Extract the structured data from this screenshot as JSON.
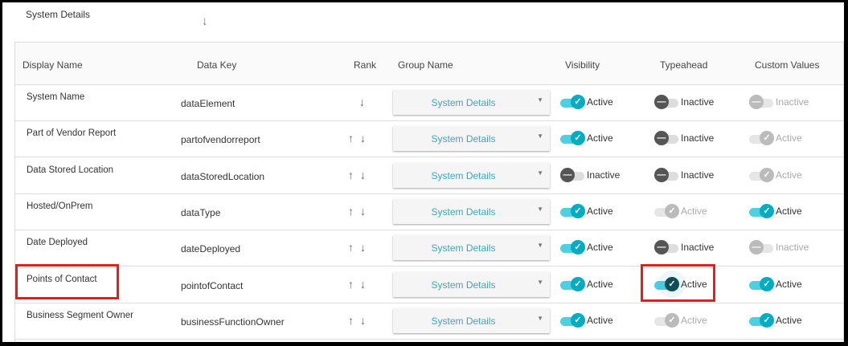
{
  "section": {
    "title": "System Details",
    "sort_icon": "arrow-down-icon"
  },
  "columns": [
    "Display Name",
    "Data Key",
    "Rank",
    "Group Name",
    "Visibility",
    "Typeahead",
    "Custom Values"
  ],
  "colors": {
    "accent": "#00acc1",
    "highlight": "#e0201f",
    "group_text": "#3aa7bd"
  },
  "rows": [
    {
      "display_name": "System Name",
      "data_key": "dataElement",
      "rank": "↓",
      "group": "System Details",
      "visibility": {
        "state": "on",
        "label": "Active"
      },
      "typeahead": {
        "state": "off",
        "label": "Inactive"
      },
      "custom": {
        "state": "doff",
        "label": "Inactive"
      }
    },
    {
      "display_name": "Part of Vendor Report",
      "data_key": "partofvendorreport",
      "rank": "↑↓",
      "group": "System Details",
      "visibility": {
        "state": "on",
        "label": "Active"
      },
      "typeahead": {
        "state": "off",
        "label": "Inactive"
      },
      "custom": {
        "state": "don",
        "label": "Active"
      }
    },
    {
      "display_name": "Data Stored Location",
      "data_key": "dataStoredLocation",
      "rank": "↑↓",
      "group": "System Details",
      "visibility": {
        "state": "off",
        "label": "Inactive"
      },
      "typeahead": {
        "state": "off",
        "label": "Inactive"
      },
      "custom": {
        "state": "don",
        "label": "Active"
      }
    },
    {
      "display_name": "Hosted/OnPrem",
      "data_key": "dataType",
      "rank": "↑↓",
      "group": "System Details",
      "visibility": {
        "state": "on",
        "label": "Active"
      },
      "typeahead": {
        "state": "don",
        "label": "Active"
      },
      "custom": {
        "state": "on",
        "label": "Active"
      }
    },
    {
      "display_name": "Date Deployed",
      "data_key": "dateDeployed",
      "rank": "↑↓",
      "group": "System Details",
      "visibility": {
        "state": "on",
        "label": "Active"
      },
      "typeahead": {
        "state": "off",
        "label": "Inactive"
      },
      "custom": {
        "state": "doff",
        "label": "Inactive"
      }
    },
    {
      "display_name": "Points of Contact",
      "data_key": "pointofContact",
      "rank": "↑↓",
      "group": "System Details",
      "visibility": {
        "state": "on",
        "label": "Active"
      },
      "typeahead": {
        "state": "foc",
        "label": "Active"
      },
      "custom": {
        "state": "on",
        "label": "Active"
      }
    },
    {
      "display_name": "Business Segment Owner",
      "data_key": "businessFunctionOwner",
      "rank": "↑↓",
      "group": "System Details",
      "visibility": {
        "state": "on",
        "label": "Active"
      },
      "typeahead": {
        "state": "don",
        "label": "Active"
      },
      "custom": {
        "state": "on",
        "label": "Active"
      }
    }
  ]
}
